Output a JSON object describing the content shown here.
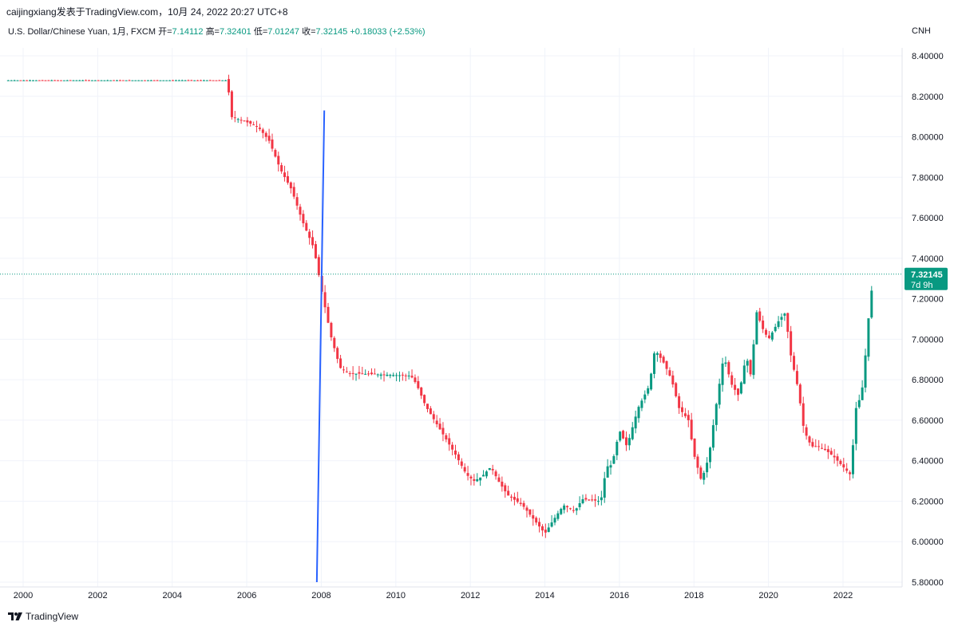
{
  "header": {
    "source_line": "caijingxiang发表于TradingView.com，10月 24, 2022 20:27 UTC+8"
  },
  "legend": {
    "symbol": "U.S. Dollar/Chinese Yuan, 1月, FXCM",
    "open_label": "开=",
    "open": "7.14112",
    "high_label": "高=",
    "high": "7.32401",
    "low_label": "低=",
    "low": "7.01247",
    "close_label": "收=",
    "close": "7.32145",
    "change": "+0.18033 (+2.53%)"
  },
  "footer": {
    "brand": "TradingView",
    "logo_icon": "tradingview-logo-icon"
  },
  "price_tag": {
    "price": "7.32145",
    "countdown": "7d 9h"
  },
  "colors": {
    "up": "#089981",
    "down": "#f23645",
    "line": "#2962ff",
    "grid": "#f0f3fa",
    "tag": "#089981"
  },
  "chart_data": {
    "type": "candlestick",
    "currency_label": "CNH",
    "ylim": [
      5.8,
      8.5
    ],
    "xlim": [
      1999.6,
      2023.2
    ],
    "y_ticks": [
      "8.40000",
      "8.20000",
      "8.00000",
      "7.80000",
      "7.60000",
      "7.40000",
      "7.20000",
      "7.00000",
      "6.80000",
      "6.60000",
      "6.40000",
      "6.20000",
      "6.00000",
      "5.80000"
    ],
    "x_ticks": [
      "2000",
      "2002",
      "2004",
      "2006",
      "2008",
      "2010",
      "2012",
      "2014",
      "2016",
      "2018",
      "2020",
      "2022"
    ],
    "last_price": 7.32145,
    "trend_line": {
      "x": [
        2007.88,
        2008.08
      ],
      "y": [
        5.8,
        8.13
      ]
    },
    "close_path": [
      [
        1999.6,
        8.279
      ],
      [
        2005.5,
        8.279
      ],
      [
        2005.55,
        8.1
      ],
      [
        2005.9,
        8.08
      ],
      [
        2006.3,
        8.05
      ],
      [
        2006.6,
        7.98
      ],
      [
        2006.9,
        7.84
      ],
      [
        2007.2,
        7.74
      ],
      [
        2007.5,
        7.58
      ],
      [
        2007.8,
        7.45
      ],
      [
        2008.0,
        7.25
      ],
      [
        2008.25,
        7.02
      ],
      [
        2008.5,
        6.86
      ],
      [
        2008.75,
        6.83
      ],
      [
        2009.0,
        6.83
      ],
      [
        2010.4,
        6.82
      ],
      [
        2010.55,
        6.78
      ],
      [
        2010.8,
        6.67
      ],
      [
        2011.2,
        6.55
      ],
      [
        2011.6,
        6.43
      ],
      [
        2011.9,
        6.33
      ],
      [
        2012.1,
        6.3
      ],
      [
        2012.3,
        6.32
      ],
      [
        2012.55,
        6.37
      ],
      [
        2012.75,
        6.3
      ],
      [
        2013.0,
        6.23
      ],
      [
        2013.4,
        6.18
      ],
      [
        2013.7,
        6.11
      ],
      [
        2014.0,
        6.04
      ],
      [
        2014.2,
        6.1
      ],
      [
        2014.5,
        6.18
      ],
      [
        2014.8,
        6.15
      ],
      [
        2015.0,
        6.21
      ],
      [
        2015.5,
        6.2
      ],
      [
        2015.65,
        6.37
      ],
      [
        2015.8,
        6.38
      ],
      [
        2016.0,
        6.55
      ],
      [
        2016.2,
        6.47
      ],
      [
        2016.5,
        6.66
      ],
      [
        2016.8,
        6.77
      ],
      [
        2016.95,
        6.95
      ],
      [
        2017.2,
        6.88
      ],
      [
        2017.4,
        6.8
      ],
      [
        2017.6,
        6.66
      ],
      [
        2017.85,
        6.6
      ],
      [
        2018.0,
        6.43
      ],
      [
        2018.2,
        6.3
      ],
      [
        2018.4,
        6.42
      ],
      [
        2018.55,
        6.62
      ],
      [
        2018.8,
        6.92
      ],
      [
        2019.0,
        6.78
      ],
      [
        2019.2,
        6.72
      ],
      [
        2019.4,
        6.92
      ],
      [
        2019.55,
        6.8
      ],
      [
        2019.65,
        7.15
      ],
      [
        2019.85,
        7.05
      ],
      [
        2020.0,
        7.0
      ],
      [
        2020.3,
        7.1
      ],
      [
        2020.45,
        7.13
      ],
      [
        2020.6,
        6.92
      ],
      [
        2020.8,
        6.75
      ],
      [
        2020.95,
        6.55
      ],
      [
        2021.15,
        6.47
      ],
      [
        2021.35,
        6.47
      ],
      [
        2021.55,
        6.45
      ],
      [
        2021.75,
        6.42
      ],
      [
        2022.0,
        6.37
      ],
      [
        2022.2,
        6.33
      ],
      [
        2022.35,
        6.66
      ],
      [
        2022.5,
        6.73
      ],
      [
        2022.6,
        6.92
      ],
      [
        2022.7,
        7.14
      ],
      [
        2022.82,
        7.32
      ]
    ]
  }
}
